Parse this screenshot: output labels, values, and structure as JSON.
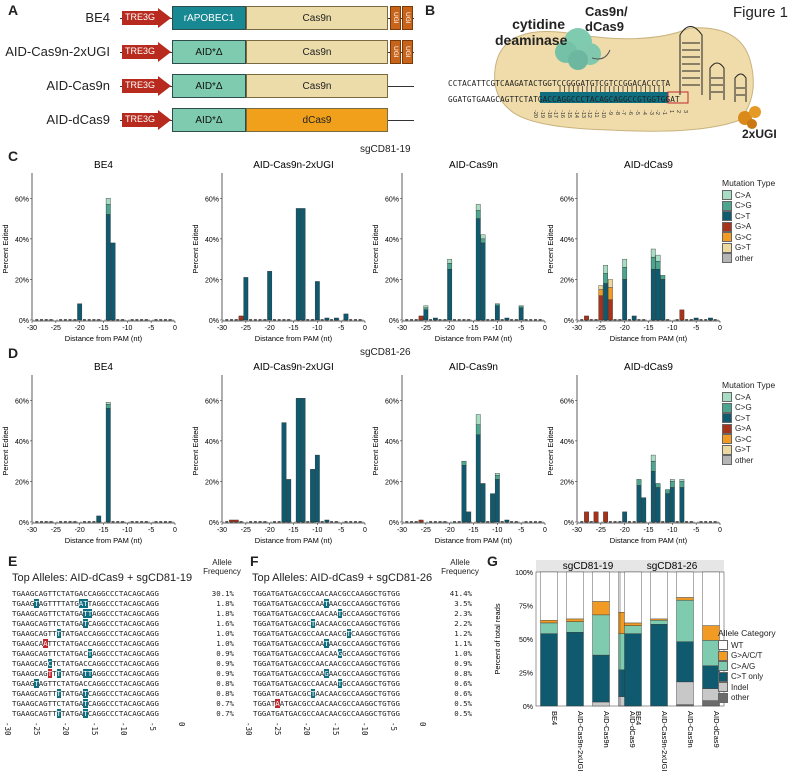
{
  "figure_label": "Figure 1",
  "panels": {
    "A": "A",
    "B": "B",
    "C": "C",
    "D": "D",
    "E": "E",
    "F": "F",
    "G": "G"
  },
  "constructs": [
    {
      "name": "BE4",
      "promoter": "TRE3G",
      "deaminase": "rAPOBEC1",
      "cas": "Cas9n",
      "ugi": [
        "UGI",
        "UGI"
      ]
    },
    {
      "name": "AID-Cas9n-2xUGI",
      "promoter": "TRE3G",
      "deaminase": "AID*Δ",
      "cas": "Cas9n",
      "ugi": [
        "UGI",
        "UGI"
      ]
    },
    {
      "name": "AID-Cas9n",
      "promoter": "TRE3G",
      "deaminase": "AID*Δ",
      "cas": "Cas9n",
      "ugi": []
    },
    {
      "name": "AID-dCas9",
      "promoter": "TRE3G",
      "deaminase": "AID*Δ",
      "cas": "dCas9",
      "ugi": []
    }
  ],
  "schematic": {
    "deaminase_label": "cytidine deaminase",
    "cas_label_1": "Cas9n/",
    "cas_label_2": "dCas9",
    "ugi_label": "2xUGI",
    "top_strand": "CCTACATTCGTCAAGATACTGGTCCGGGATGTCGTCCGGACACCCTA",
    "bottom_strand": "GGATGTGAAGCAGTTCTATGACCAGGCCCTACAGCAGGCCGTGGTGGAT",
    "positions": [
      "-20",
      "-19",
      "-18",
      "-17",
      "-16",
      "-15",
      "-14",
      "-13",
      "-12",
      "-11",
      "-10",
      "-9",
      "-8",
      "-7",
      "-6",
      "-5",
      "-4",
      "-3",
      "-2",
      "-1",
      "1",
      "2",
      "3"
    ]
  },
  "colors": {
    "C>A": "#a8ddc4",
    "C>G": "#4ba58f",
    "C>T": "#0f5a6e",
    "G>A": "#a8331b",
    "G>C": "#f29b24",
    "G>T": "#ecd9a0",
    "other": "#b5b5b5",
    "WT": "#ffffff",
    "G>A/C/T": "#f29b24",
    "C>A/G": "#7fcbb0",
    "C>T only": "#0f5a6e",
    "Indel": "#c8c8c8",
    "other_g": "#6b6b6b",
    "tre": "#b72a1d",
    "rapobec": "#188893",
    "aid": "#7fcbb0",
    "cas9n": "#ecdcaa",
    "dcas9": "#f0a01a",
    "ugi": "#c7641a"
  },
  "row_titles": {
    "C": "sgCD81-19",
    "D": "sgCD81-26"
  },
  "chart_data": [
    {
      "type": "bar",
      "id": "C-BE4",
      "title": "BE4",
      "xlabel": "Distance from PAM (nt)",
      "ylabel": "Percent Edited",
      "ylim": [
        0,
        70
      ],
      "yticks": [
        "0%",
        "20%",
        "40%",
        "60%"
      ],
      "xticks": [
        "-30",
        "-25",
        "-20",
        "-15",
        "-10",
        "-5",
        "0"
      ],
      "bars": [
        {
          "x": -20,
          "C>T": 8
        },
        {
          "x": -14,
          "C>T": 52,
          "C>G": 5,
          "C>A": 3
        },
        {
          "x": -13,
          "C>T": 38
        }
      ]
    },
    {
      "type": "bar",
      "id": "C-AID-Cas9n-2xUGI",
      "title": "AID-Cas9n-2xUGI",
      "xlabel": "Distance from PAM (nt)",
      "ylabel": "Percent Edited",
      "ylim": [
        0,
        70
      ],
      "yticks": [
        "0%",
        "20%",
        "40%",
        "60%"
      ],
      "xticks": [
        "-30",
        "-25",
        "-20",
        "-15",
        "-10",
        "-5",
        "0"
      ],
      "bars": [
        {
          "x": -26,
          "G>A": 2
        },
        {
          "x": -25,
          "C>T": 21
        },
        {
          "x": -20,
          "C>T": 24
        },
        {
          "x": -14,
          "C>T": 55
        },
        {
          "x": -13,
          "C>T": 55
        },
        {
          "x": -10,
          "C>T": 19
        },
        {
          "x": -8,
          "C>T": 1
        },
        {
          "x": -6,
          "C>T": 1
        },
        {
          "x": -4,
          "C>T": 3
        }
      ]
    },
    {
      "type": "bar",
      "id": "C-AID-Cas9n",
      "title": "AID-Cas9n",
      "xlabel": "Distance from PAM (nt)",
      "ylabel": "Percent Edited",
      "ylim": [
        0,
        70
      ],
      "yticks": [
        "0%",
        "20%",
        "40%",
        "60%"
      ],
      "xticks": [
        "-30",
        "-25",
        "-20",
        "-15",
        "-10",
        "-5",
        "0"
      ],
      "bars": [
        {
          "x": -26,
          "G>A": 2
        },
        {
          "x": -25,
          "C>T": 5,
          "C>G": 1,
          "C>A": 1
        },
        {
          "x": -23,
          "C>T": 1
        },
        {
          "x": -20,
          "C>T": 25,
          "C>G": 3,
          "C>A": 2
        },
        {
          "x": -14,
          "C>T": 50,
          "C>G": 4,
          "C>A": 3
        },
        {
          "x": -13,
          "C>T": 38,
          "C>G": 2,
          "C>A": 2
        },
        {
          "x": -10,
          "C>T": 7,
          "C>G": 1
        },
        {
          "x": -8,
          "C>T": 1
        },
        {
          "x": -5,
          "C>T": 6,
          "C>G": 1
        }
      ]
    },
    {
      "type": "bar",
      "id": "C-AID-dCas9",
      "title": "AID-dCas9",
      "xlabel": "Distance from PAM (nt)",
      "ylabel": "Percent Edited",
      "ylim": [
        0,
        70
      ],
      "yticks": [
        "0%",
        "20%",
        "40%",
        "60%"
      ],
      "xticks": [
        "-30",
        "-25",
        "-20",
        "-15",
        "-10",
        "-5",
        "0"
      ],
      "bars": [
        {
          "x": -28,
          "G>A": 2
        },
        {
          "x": -25,
          "G>A": 12,
          "G>C": 3,
          "G>T": 2
        },
        {
          "x": -24,
          "C>T": 18,
          "C>G": 5,
          "C>A": 4
        },
        {
          "x": -23,
          "G>A": 10,
          "G>C": 6,
          "G>T": 4
        },
        {
          "x": -20,
          "C>T": 20,
          "C>G": 6,
          "C>A": 4
        },
        {
          "x": -18,
          "C>T": 2
        },
        {
          "x": -14,
          "C>T": 25,
          "C>G": 6,
          "C>A": 4
        },
        {
          "x": -13,
          "C>T": 25,
          "C>G": 4,
          "C>A": 3
        },
        {
          "x": -12,
          "C>T": 20,
          "C>G": 2
        },
        {
          "x": -8,
          "G>A": 5
        },
        {
          "x": -5,
          "C>T": 1
        },
        {
          "x": -2,
          "C>T": 1
        }
      ]
    },
    {
      "type": "bar",
      "id": "D-BE4",
      "title": "BE4",
      "xlabel": "Distance from PAM (nt)",
      "ylabel": "Percent Edited",
      "ylim": [
        0,
        70
      ],
      "yticks": [
        "0%",
        "20%",
        "40%",
        "60%"
      ],
      "xticks": [
        "-30",
        "-25",
        "-20",
        "-15",
        "-10",
        "-5",
        "0"
      ],
      "bars": [
        {
          "x": -16,
          "C>T": 3
        },
        {
          "x": -14,
          "C>T": 56,
          "C>G": 2,
          "C>A": 1
        }
      ]
    },
    {
      "type": "bar",
      "id": "D-AID-Cas9n-2xUGI",
      "title": "AID-Cas9n-2xUGI",
      "xlabel": "Distance from PAM (nt)",
      "ylabel": "Percent Edited",
      "ylim": [
        0,
        70
      ],
      "yticks": [
        "0%",
        "20%",
        "40%",
        "60%"
      ],
      "xticks": [
        "-30",
        "-25",
        "-20",
        "-15",
        "-10",
        "-5",
        "0"
      ],
      "bars": [
        {
          "x": -28,
          "G>A": 1
        },
        {
          "x": -27,
          "G>A": 1
        },
        {
          "x": -17,
          "C>T": 49
        },
        {
          "x": -16,
          "C>T": 21
        },
        {
          "x": -14,
          "C>T": 61
        },
        {
          "x": -13,
          "C>T": 61
        },
        {
          "x": -11,
          "C>T": 26
        },
        {
          "x": -10,
          "C>T": 33
        },
        {
          "x": -8,
          "C>T": 1
        }
      ]
    },
    {
      "type": "bar",
      "id": "D-AID-Cas9n",
      "title": "AID-Cas9n",
      "xlabel": "Distance from PAM (nt)",
      "ylabel": "Percent Edited",
      "ylim": [
        0,
        70
      ],
      "yticks": [
        "0%",
        "20%",
        "40%",
        "60%"
      ],
      "xticks": [
        "-30",
        "-25",
        "-20",
        "-15",
        "-10",
        "-5",
        "0"
      ],
      "bars": [
        {
          "x": -26,
          "G>A": 1
        },
        {
          "x": -17,
          "C>T": 28,
          "C>G": 2
        },
        {
          "x": -16,
          "C>T": 5
        },
        {
          "x": -14,
          "C>T": 43,
          "C>G": 5,
          "C>A": 5
        },
        {
          "x": -13,
          "C>T": 19
        },
        {
          "x": -11,
          "C>T": 14
        },
        {
          "x": -10,
          "C>T": 21,
          "C>G": 2,
          "C>A": 1
        },
        {
          "x": -8,
          "C>T": 1
        }
      ]
    },
    {
      "type": "bar",
      "id": "D-AID-dCas9",
      "title": "AID-dCas9",
      "xlabel": "Distance from PAM (nt)",
      "ylabel": "Percent Edited",
      "ylim": [
        0,
        70
      ],
      "yticks": [
        "0%",
        "20%",
        "40%",
        "60%"
      ],
      "xticks": [
        "-30",
        "-25",
        "-20",
        "-15",
        "-10",
        "-5",
        "0"
      ],
      "bars": [
        {
          "x": -28,
          "G>A": 5
        },
        {
          "x": -26,
          "G>A": 5
        },
        {
          "x": -24,
          "G>A": 5
        },
        {
          "x": -20,
          "C>T": 5
        },
        {
          "x": -17,
          "C>T": 18,
          "C>G": 3
        },
        {
          "x": -16,
          "C>T": 12
        },
        {
          "x": -14,
          "C>T": 25,
          "C>G": 5,
          "C>A": 3
        },
        {
          "x": -13,
          "C>T": 17,
          "C>G": 2
        },
        {
          "x": -11,
          "C>T": 14,
          "C>G": 2
        },
        {
          "x": -10,
          "C>T": 17,
          "C>G": 3,
          "C>A": 1
        },
        {
          "x": -8,
          "C>T": 17,
          "C>G": 3,
          "C>A": 1
        }
      ]
    },
    {
      "type": "bar",
      "id": "G-sgCD81-19",
      "title": "sgCD81-19",
      "ylabel": "Percent of total reads",
      "yticks": [
        "0%",
        "25%",
        "50%",
        "75%",
        "100%"
      ],
      "categories": [
        "BE4",
        "AID-Cas9n-2xUGI",
        "AID-Cas9n",
        "AID-dCas9"
      ],
      "series": [
        {
          "name": "other",
          "values": [
            0,
            0,
            0,
            0
          ]
        },
        {
          "name": "Indel",
          "values": [
            0,
            0,
            3,
            7
          ]
        },
        {
          "name": "C>T only",
          "values": [
            54,
            55,
            35,
            20
          ]
        },
        {
          "name": "C>A/G",
          "values": [
            8,
            8,
            30,
            27
          ]
        },
        {
          "name": "G>A/C/T",
          "values": [
            2,
            2,
            10,
            16
          ]
        },
        {
          "name": "WT",
          "values": [
            36,
            35,
            22,
            30
          ]
        }
      ]
    },
    {
      "type": "bar",
      "id": "G-sgCD81-26",
      "title": "sgCD81-26",
      "ylabel": "Percent of total reads",
      "yticks": [
        "0%",
        "25%",
        "50%",
        "75%",
        "100%"
      ],
      "categories": [
        "BE4",
        "AID-Cas9n-2xUGI",
        "AID-Cas9n",
        "AID-dCas9"
      ],
      "series": [
        {
          "name": "other",
          "values": [
            0,
            0,
            1,
            4
          ]
        },
        {
          "name": "Indel",
          "values": [
            0,
            0,
            17,
            9
          ]
        },
        {
          "name": "C>T only",
          "values": [
            54,
            61,
            30,
            17
          ]
        },
        {
          "name": "C>A/G",
          "values": [
            6,
            3,
            31,
            19
          ]
        },
        {
          "name": "G>A/C/T",
          "values": [
            2,
            1,
            2,
            11
          ]
        },
        {
          "name": "WT",
          "values": [
            38,
            35,
            19,
            40
          ]
        }
      ]
    }
  ],
  "legend_mutation": {
    "title": "Mutation Type",
    "items": [
      "C>A",
      "C>G",
      "C>T",
      "G>A",
      "G>C",
      "G>T",
      "other"
    ]
  },
  "legend_allele": {
    "title": "Allele Category",
    "items": [
      "WT",
      "G>A/C/T",
      "C>A/G",
      "C>T only",
      "Indel",
      "other"
    ]
  },
  "alleles_E": {
    "title": "Top Alleles: AID-dCas9 + sgCD81-19",
    "freq_header_1": "Allele",
    "freq_header_2": "Frequency",
    "rows": [
      {
        "seq": "TGAAGCAGTTCTATGACCAGGCCCTACAGCAGG",
        "freq": "30.1%"
      },
      {
        "seq": "TGAAGTAGTTTTATGATTAGGCCCTACAGCAGG",
        "freq": "1.8%"
      },
      {
        "seq": "TGAAGCAGTTCTATGATTAGGCCCTACAGCAGG",
        "freq": "1.8%"
      },
      {
        "seq": "TGAAGCAGTTCTATGATCAGGCCCTACAGCAGG",
        "freq": "1.6%"
      },
      {
        "seq": "TGAAGCAGTTTTATGACCAGGCCCTACAGCAGG",
        "freq": "1.0%"
      },
      {
        "seq": "TGAAGCAATTCTATGACCAGGCCCTACAGCAGG",
        "freq": "1.0%"
      },
      {
        "seq": "TGAAGCAGTTCTATGACTAGGCCCTACAGCAGG",
        "freq": "0.9%"
      },
      {
        "seq": "TGAAGCAGCTCTATGACCAGGCCCTACAGCAGG",
        "freq": "0.9%"
      },
      {
        "seq": "TGAAGCAGTTTTATGATTAGGCCCTACAGCAGG",
        "freq": "0.9%"
      },
      {
        "seq": "TGAAGTAGTTCTATGACCAGGCCCTACAGCAGG",
        "freq": "0.8%"
      },
      {
        "seq": "TGAAGCAGTTTTATGATCAGGCCCTACAGCAGG",
        "freq": "0.8%"
      },
      {
        "seq": "TGAAGCAGTTCTATGATCAGGCCCTACAGCAGG",
        "freq": "0.7%"
      },
      {
        "seq": "TGAAGCAGTTTTATGATCAGGCCCTACAGCAGG",
        "freq": "0.7%"
      }
    ],
    "axis": [
      "-30",
      "-25",
      "-20",
      "-15",
      "-10",
      "-5",
      "0"
    ]
  },
  "alleles_F": {
    "title": "Top Alleles: AID-dCas9 + sgCD81-26",
    "freq_header_1": "Allele",
    "freq_header_2": "Frequency",
    "rows": [
      {
        "seq": "TGGATGATGACGCCAACAACGCCAAGGCTGTGG",
        "freq": "41.4%"
      },
      {
        "seq": "TGGATGATGACGCCAATAACGCCAAGGCTGTGG",
        "freq": "3.5%"
      },
      {
        "seq": "TGGATGATGACGCCAACAATGCCAAGGCTGTGG",
        "freq": "2.3%"
      },
      {
        "seq": "TGGATGATGACGCTAACAACGCCAAGGCTGTGG",
        "freq": "2.2%"
      },
      {
        "seq": "TGGATGATGACGCCAACAACGTCAAGGCTGTGG",
        "freq": "1.2%"
      },
      {
        "seq": "TGGATGATGACGCCAATAACGCCAAGGCTGTGG",
        "freq": "1.1%"
      },
      {
        "seq": "TGGATGATGACGCCAACAAGGCCAAGGCTGTGG",
        "freq": "1.0%"
      },
      {
        "seq": "TGGATGATGACGCCAACAACGCCAAGGCTGTGG",
        "freq": "0.9%"
      },
      {
        "seq": "TGGATGATGACGCCAAGAACGCCAAGGCTGTGG",
        "freq": "0.8%"
      },
      {
        "seq": "TGGATGATGACGCCAACAATGCCAAGGCTGTGG",
        "freq": "0.6%"
      },
      {
        "seq": "TGGATGATGACGCTAACAACGCCAAGGCTGTGG",
        "freq": "0.6%"
      },
      {
        "seq": "TGGATAATGACGCCAACAACGCCAAGGCTGTGG",
        "freq": "0.5%"
      },
      {
        "seq": "TGGATGATGACGCCAACAACGCCAAGGCTGTGG",
        "freq": "0.5%"
      }
    ],
    "axis": [
      "-30",
      "-25",
      "-20",
      "-15",
      "-10",
      "-5",
      "0"
    ]
  }
}
